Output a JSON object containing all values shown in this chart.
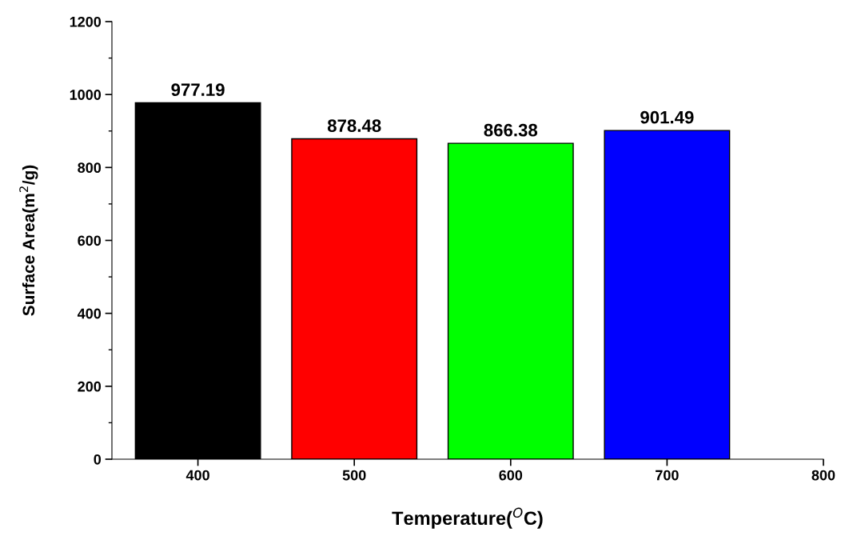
{
  "chart_data": {
    "type": "bar",
    "x": [
      400,
      500,
      600,
      700
    ],
    "values": [
      977.19,
      878.48,
      866.38,
      901.49
    ],
    "colors": [
      "#000000",
      "#ff0000",
      "#00ff00",
      "#0000ff"
    ],
    "data_labels": true,
    "xlabel": "Temperature($^{O}$C)",
    "ylabel": "Surface Area(m$^{2}$/g)",
    "xlim": [
      345,
      800
    ],
    "xticks": [
      400,
      500,
      600,
      700,
      800
    ],
    "ylim": [
      0,
      1200
    ],
    "yticks": [
      0,
      200,
      400,
      600,
      800,
      1000,
      1200
    ],
    "grid": false,
    "legend": false
  }
}
